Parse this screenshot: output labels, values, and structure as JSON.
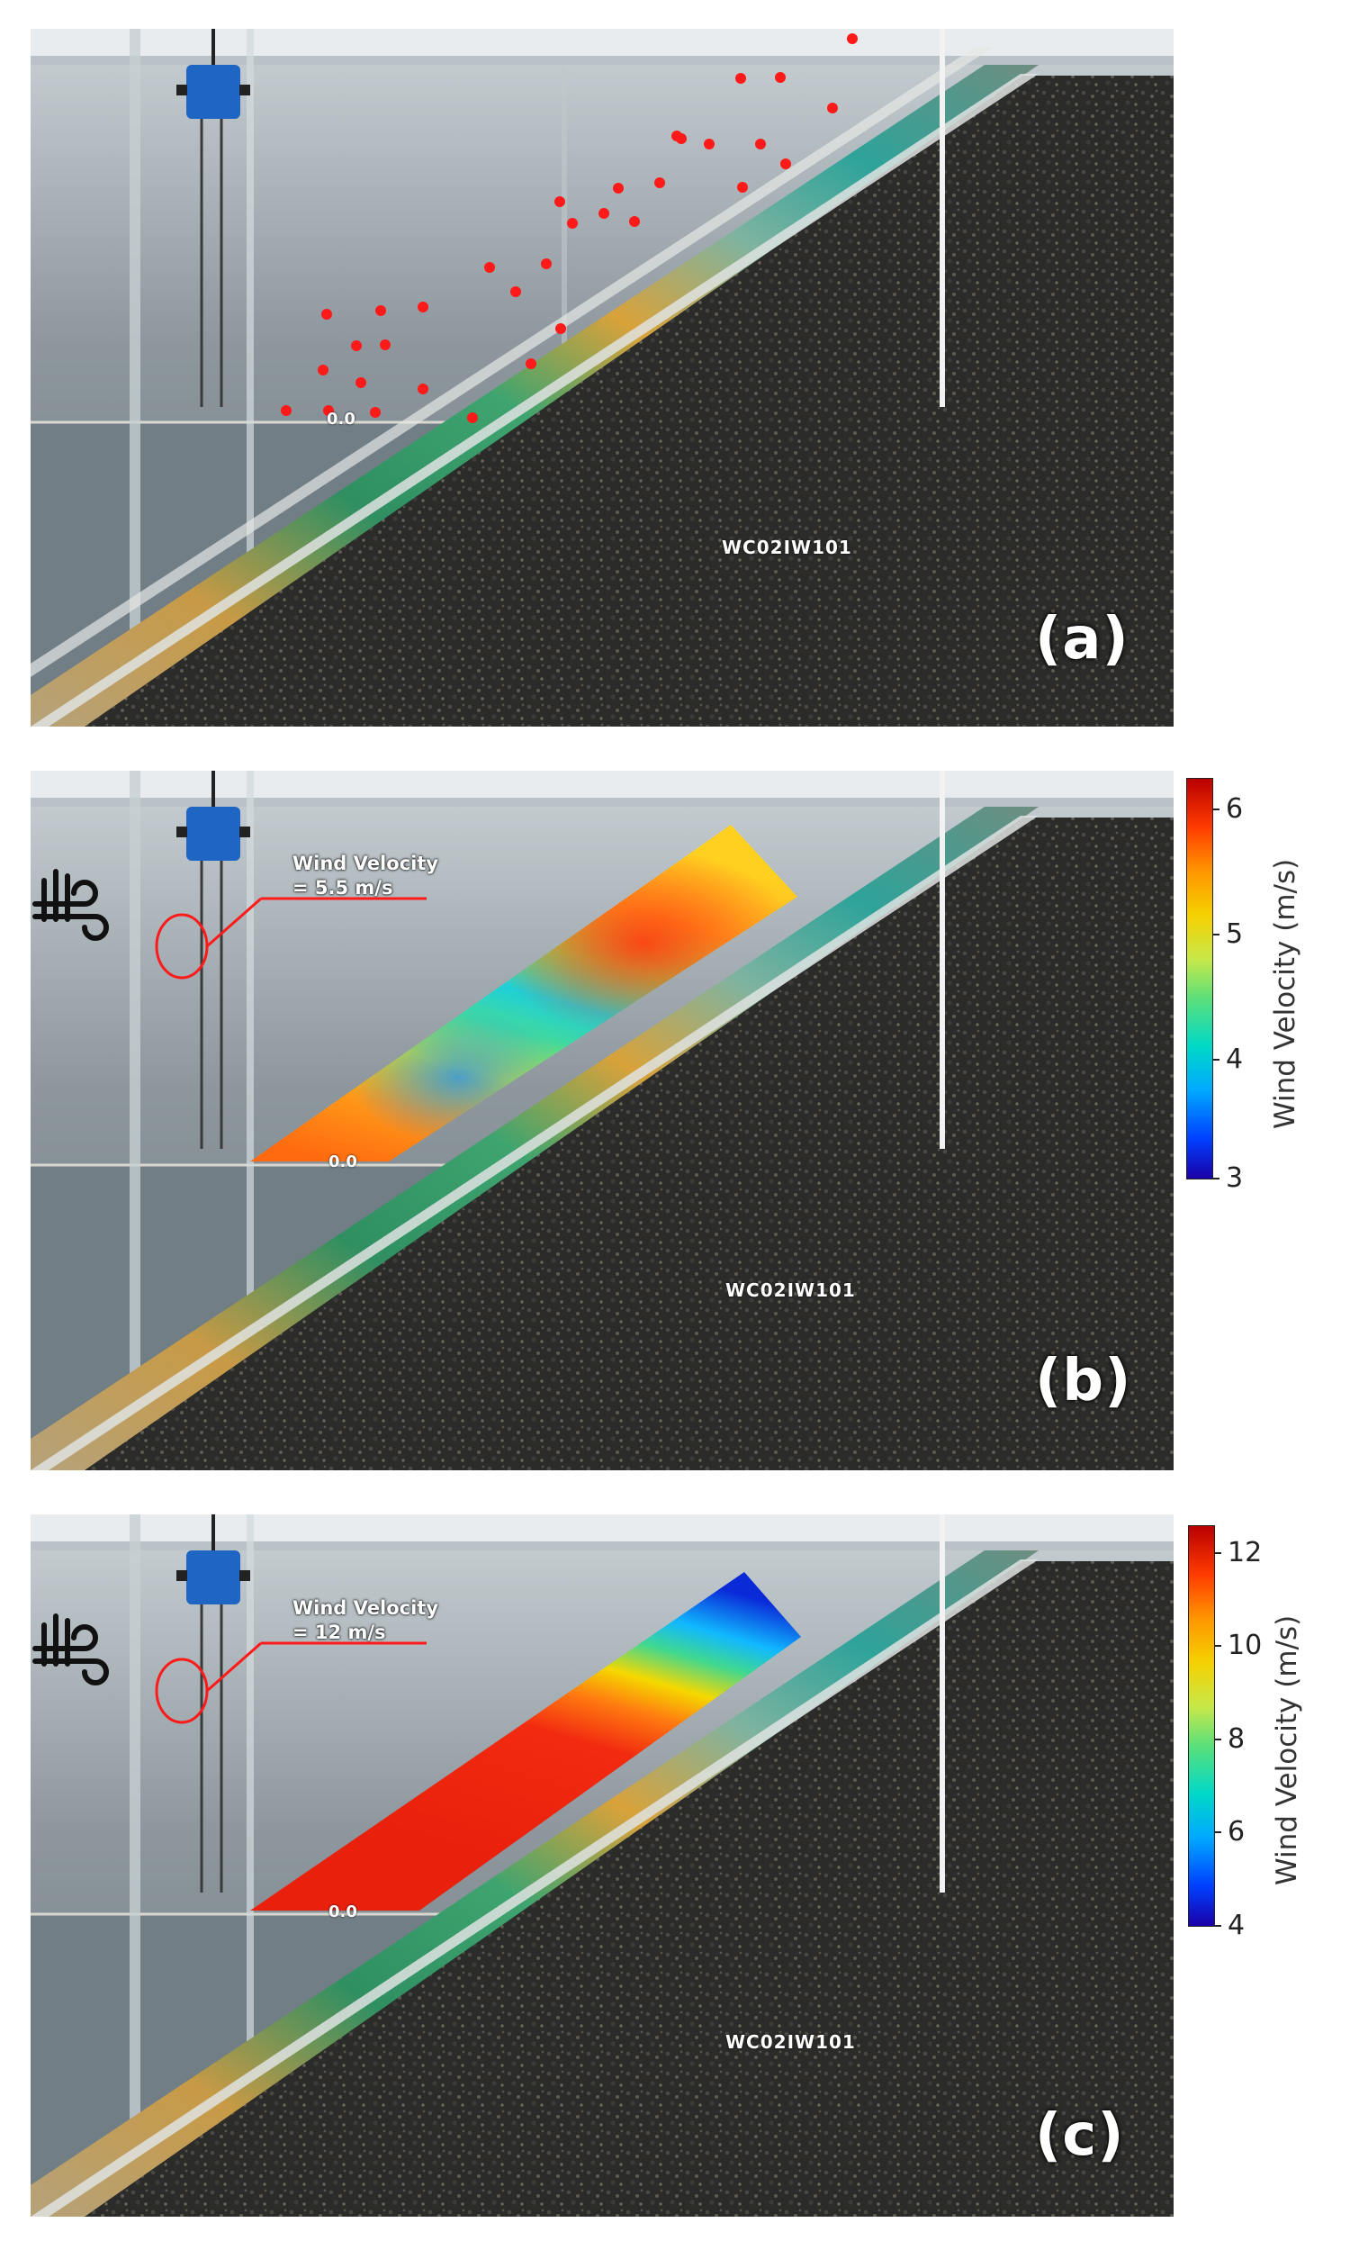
{
  "panels": {
    "a": {
      "label": "(a)",
      "model_code": "WC02IW101",
      "zero_label": "0.0",
      "measurement_points": [
        [
          284,
          424
        ],
        [
          331,
          424
        ],
        [
          383,
          426
        ],
        [
          325,
          379
        ],
        [
          367,
          393
        ],
        [
          436,
          400
        ],
        [
          362,
          352
        ],
        [
          394,
          351
        ],
        [
          329,
          317
        ],
        [
          389,
          313
        ],
        [
          436,
          309
        ],
        [
          491,
          432
        ],
        [
          556,
          372
        ],
        [
          589,
          333
        ],
        [
          539,
          292
        ],
        [
          510,
          265
        ],
        [
          573,
          261
        ],
        [
          602,
          216
        ],
        [
          637,
          205
        ],
        [
          588,
          192
        ],
        [
          671,
          214
        ],
        [
          653,
          177
        ],
        [
          699,
          171
        ],
        [
          723,
          122
        ],
        [
          754,
          128
        ],
        [
          718,
          119
        ],
        [
          791,
          176
        ],
        [
          839,
          150
        ],
        [
          811,
          128
        ],
        [
          789,
          55
        ],
        [
          833,
          54
        ],
        [
          891,
          88
        ],
        [
          913,
          11
        ]
      ]
    },
    "b": {
      "label": "(b)",
      "model_code": "WC02IW101",
      "zero_label": "0.0",
      "wind_label": "Wind Velocity",
      "wind_value": "= 5.5 m/s",
      "colorbar": {
        "title": "Wind Velocity (m/s)",
        "ticks": [
          "6",
          "5",
          "4",
          "3"
        ],
        "min": 3,
        "max": 6.2
      }
    },
    "c": {
      "label": "(c)",
      "model_code": "WC02IW101",
      "zero_label": "0.0",
      "wind_label": "Wind Velocity",
      "wind_value": "= 12 m/s",
      "colorbar": {
        "title": "Wind Velocity (m/s)",
        "ticks": [
          "12",
          "10",
          "8",
          "6",
          "4"
        ],
        "min": 4,
        "max": 12.6
      }
    }
  },
  "colors": {
    "marker": "#ff1a1a",
    "slope_red": "#e83a1a",
    "slope_orange": "#f59a12",
    "slope_yellow": "#f0d200",
    "slope_green": "#1f9a5a",
    "slope_cyan": "#2ab8c8",
    "gravel": "#2a2a28",
    "flume_sky": "#9aa8b0"
  },
  "icons": {
    "wind": "wind-icon",
    "probe": "wind-probe-icon"
  }
}
